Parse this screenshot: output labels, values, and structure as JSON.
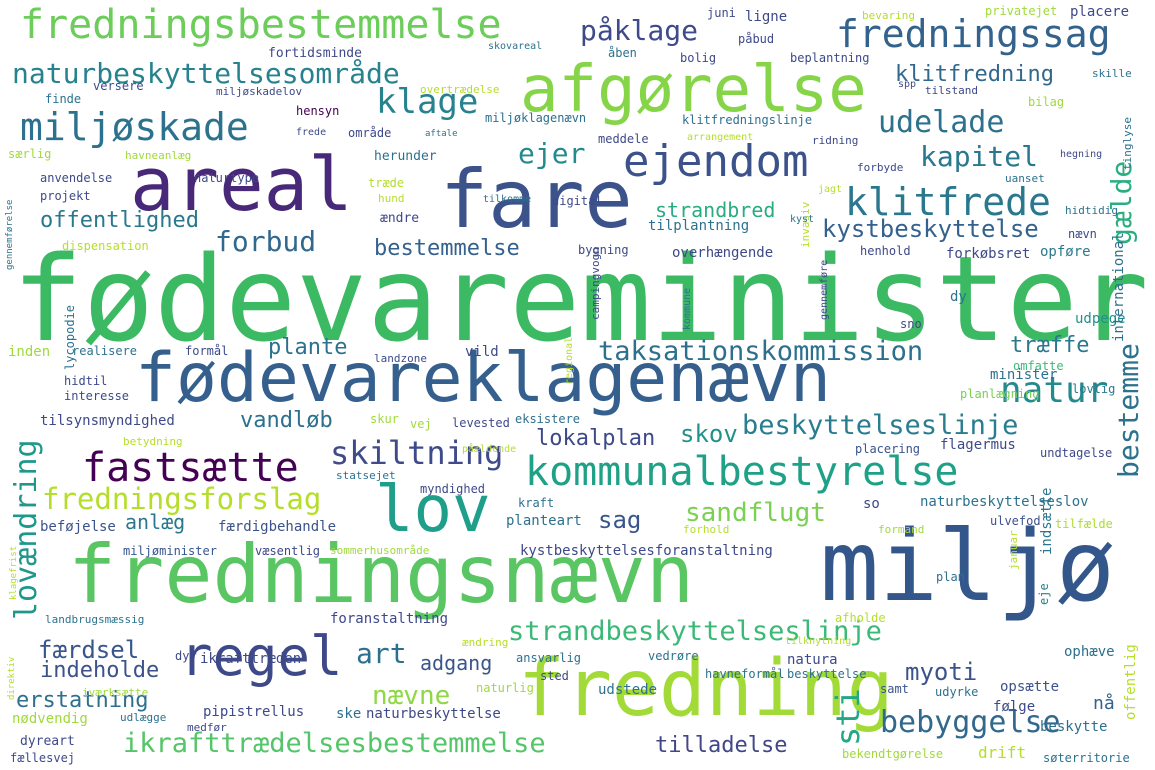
{
  "words": [
    {
      "text": "fødevareminister",
      "color": "#3cb963"
    },
    {
      "text": "fredningsnævn",
      "color": "#5ac563"
    },
    {
      "text": "miljø",
      "color": "#33568b"
    },
    {
      "text": "fare",
      "color": "#3b528b"
    },
    {
      "text": "areal",
      "color": "#482878"
    },
    {
      "text": "fødevareklagenævn",
      "color": "#355f8d"
    },
    {
      "text": "fredning",
      "color": "#a2da37"
    },
    {
      "text": "afgørelse",
      "color": "#86d549"
    },
    {
      "text": "fredningsbestemmelse",
      "color": "#6ccd5a"
    },
    {
      "text": "ejendom",
      "color": "#3b528b"
    },
    {
      "text": "regel",
      "color": "#3e4989"
    },
    {
      "text": "lov",
      "color": "#1f9e89"
    },
    {
      "text": "kommunalbestyrelse",
      "color": "#1fa187"
    },
    {
      "text": "fastsætte",
      "color": "#440154"
    },
    {
      "text": "fredningssag",
      "color": "#33638d"
    },
    {
      "text": "miljøskade",
      "color": "#2c728e"
    },
    {
      "text": "klitfrede",
      "color": "#2a788e"
    },
    {
      "text": "naturbeskyttelsesområde",
      "color": "#26828e"
    },
    {
      "text": "ikrafttrædelsesbestemmelse",
      "color": "#54c568"
    },
    {
      "text": "strandbeskyttelseslinje",
      "color": "#3aba76"
    },
    {
      "text": "fredningsforslag",
      "color": "#b5de2b"
    },
    {
      "text": "skiltning",
      "color": "#3e4a89"
    },
    {
      "text": "taksationskommission",
      "color": "#2d708e"
    },
    {
      "text": "beskyttelseslinje",
      "color": "#287d8e"
    },
    {
      "text": "bebyggelse",
      "color": "#31688e"
    },
    {
      "text": "lovændring",
      "color": "#1f988b"
    },
    {
      "text": "natur",
      "color": "#238a8d"
    },
    {
      "text": "bestemme",
      "color": "#2c728e"
    },
    {
      "text": "udelade",
      "color": "#2c728e"
    },
    {
      "text": "klage",
      "color": "#26828e"
    },
    {
      "text": "kapitel",
      "color": "#2a788e"
    },
    {
      "text": "forbud",
      "color": "#31688e"
    },
    {
      "text": "bestemmelse",
      "color": "#34618d"
    },
    {
      "text": "kystbeskyttelse",
      "color": "#34618d"
    },
    {
      "text": "påklage",
      "color": "#3e4a89"
    },
    {
      "text": "klitfredning",
      "color": "#31688e"
    },
    {
      "text": "ejer",
      "color": "#238a8d"
    },
    {
      "text": "gælde",
      "color": "#29af7f"
    },
    {
      "text": "sandflugt",
      "color": "#7ad151"
    },
    {
      "text": "sti",
      "color": "#22a884"
    },
    {
      "text": "art",
      "color": "#2d708e"
    },
    {
      "text": "sag",
      "color": "#39568c"
    },
    {
      "text": "færdsel",
      "color": "#39568c"
    },
    {
      "text": "adgang",
      "color": "#39568c"
    },
    {
      "text": "erstatning",
      "color": "#2d708e"
    },
    {
      "text": "indeholde",
      "color": "#3b528b"
    },
    {
      "text": "nævne",
      "color": "#8fd744"
    },
    {
      "text": "myoti",
      "color": "#3b528b"
    },
    {
      "text": "tilladelse",
      "color": "#404688"
    },
    {
      "text": "offentlighed",
      "color": "#2a788e"
    },
    {
      "text": "strandbred",
      "color": "#27ad81"
    },
    {
      "text": "plante",
      "color": "#2c728e"
    },
    {
      "text": "lokalplan",
      "color": "#3e4989"
    },
    {
      "text": "vandløb",
      "color": "#2d708e"
    },
    {
      "text": "skov",
      "color": "#21918c"
    },
    {
      "text": "træffe",
      "color": "#2a788e"
    },
    {
      "text": "anlæg",
      "color": "#2a788e"
    },
    {
      "text": "opsætte",
      "color": "#3b528b"
    },
    {
      "text": "følge",
      "color": "#3e4989"
    },
    {
      "text": "beskytte",
      "color": "#2d708e"
    },
    {
      "text": "drift",
      "color": "#b5de2b"
    },
    {
      "text": "ophæve",
      "color": "#2d708e"
    },
    {
      "text": "offentlig",
      "color": "#b5de2b"
    },
    {
      "text": "nå",
      "color": "#33638d"
    },
    {
      "text": "indsætte",
      "color": "#2a788e"
    },
    {
      "text": "so",
      "color": "#3e4989"
    },
    {
      "text": "udpege",
      "color": "#21918c"
    },
    {
      "text": "opføre",
      "color": "#2a788e"
    },
    {
      "text": "lovlig",
      "color": "#2a788e"
    },
    {
      "text": "omfatte",
      "color": "#3aba76"
    },
    {
      "text": "minister",
      "color": "#2c728e"
    },
    {
      "text": "planlægning",
      "color": "#75d054"
    },
    {
      "text": "flagermus",
      "color": "#3e4989"
    },
    {
      "text": "placering",
      "color": "#3b528b"
    },
    {
      "text": "undtagelse",
      "color": "#3e4989"
    },
    {
      "text": "naturbeskyttelseslov",
      "color": "#2c728e"
    },
    {
      "text": "tilfælde",
      "color": "#addc30"
    },
    {
      "text": "ulvefod",
      "color": "#3b528b"
    },
    {
      "text": "formand",
      "color": "#9fda3a"
    },
    {
      "text": "januar",
      "color": "#b5de2b"
    },
    {
      "text": "plan",
      "color": "#2d708e"
    },
    {
      "text": "eje",
      "color": "#26828e"
    },
    {
      "text": "afholde",
      "color": "#b5de2b"
    },
    {
      "text": "samt",
      "color": "#39568c"
    },
    {
      "text": "udyrke",
      "color": "#2c728e"
    },
    {
      "text": "bekendtgørelse",
      "color": "#9fda3a"
    },
    {
      "text": "søterritorie",
      "color": "#2c728e"
    },
    {
      "text": "udstede",
      "color": "#2c728e"
    },
    {
      "text": "natura",
      "color": "#3e4989"
    },
    {
      "text": "beskyttelse",
      "color": "#2c728e"
    },
    {
      "text": "havneformål",
      "color": "#2c728e"
    },
    {
      "text": "vedrøre",
      "color": "#2c728e"
    },
    {
      "text": "tilknytning",
      "color": "#b5de2b"
    },
    {
      "text": "ændring",
      "color": "#b5de2b"
    },
    {
      "text": "foranstaltning",
      "color": "#3e4989"
    },
    {
      "text": "ansvarlig",
      "color": "#2c728e"
    },
    {
      "text": "sted",
      "color": "#3e4989"
    },
    {
      "text": "naturlig",
      "color": "#9fda3a"
    },
    {
      "text": "ske",
      "color": "#2d708e"
    },
    {
      "text": "naturbeskyttelse",
      "color": "#3e4989"
    },
    {
      "text": "kystbeskyttelsesforanstaltning",
      "color": "#3e4989"
    },
    {
      "text": "forhold",
      "color": "#b5de2b"
    },
    {
      "text": "sommerhusområde",
      "color": "#9fda3a"
    },
    {
      "text": "væsentlig",
      "color": "#3e4989"
    },
    {
      "text": "miljøminister",
      "color": "#39568c"
    },
    {
      "text": "beføjelse",
      "color": "#3b528b"
    },
    {
      "text": "færdigbehandle",
      "color": "#3b528b"
    },
    {
      "text": "planteart",
      "color": "#2d708e"
    },
    {
      "text": "kraft",
      "color": "#2c728e"
    },
    {
      "text": "myndighed",
      "color": "#3e4989"
    },
    {
      "text": "statsejet",
      "color": "#2d708e"
    },
    {
      "text": "påældende",
      "color": "#b5de2b"
    },
    {
      "text": "levested",
      "color": "#3e4989"
    },
    {
      "text": "eksistere",
      "color": "#2d708e"
    },
    {
      "text": "skur",
      "color": "#9fda3a"
    },
    {
      "text": "vej",
      "color": "#9fda3a"
    },
    {
      "text": "tilsynsmyndighed",
      "color": "#3e4989"
    },
    {
      "text": "betydning",
      "color": "#b5de2b"
    },
    {
      "text": "interesse",
      "color": "#3e4989"
    },
    {
      "text": "hidtil",
      "color": "#3e4989"
    },
    {
      "text": "lycopodie",
      "color": "#2c728e"
    },
    {
      "text": "inden",
      "color": "#9fda3a"
    },
    {
      "text": "realisere",
      "color": "#2c728e"
    },
    {
      "text": "formål",
      "color": "#3e4989"
    },
    {
      "text": "landzone",
      "color": "#3e4989"
    },
    {
      "text": "vild",
      "color": "#3e4989"
    },
    {
      "text": "campingvogn",
      "color": "#3e4989"
    },
    {
      "text": "regional",
      "color": "#b5de2b"
    },
    {
      "text": "kommune",
      "color": "#2c728e"
    },
    {
      "text": "gennemføre",
      "color": "#3e4989"
    },
    {
      "text": "sno",
      "color": "#3e4989"
    },
    {
      "text": "dy",
      "color": "#2c728e"
    },
    {
      "text": "international",
      "color": "#2c728e"
    },
    {
      "text": "nævn",
      "color": "#3e4989"
    },
    {
      "text": "henhold",
      "color": "#3e4989"
    },
    {
      "text": "forkøbsret",
      "color": "#3e4989"
    },
    {
      "text": "overhængende",
      "color": "#3e4989"
    },
    {
      "text": "bygning",
      "color": "#3e4989"
    },
    {
      "text": "dispensation",
      "color": "#b5de2b"
    },
    {
      "text": "tilplantning",
      "color": "#2c728e"
    },
    {
      "text": "invasiv",
      "color": "#b5de2b"
    },
    {
      "text": "hidtidig",
      "color": "#2c728e"
    },
    {
      "text": "kyst",
      "color": "#2c728e"
    },
    {
      "text": "gennemførelse",
      "color": "#2c728e"
    },
    {
      "text": "projekt",
      "color": "#3e4989"
    },
    {
      "text": "anvendelse",
      "color": "#3e4989"
    },
    {
      "text": "særlig",
      "color": "#9fda3a"
    },
    {
      "text": "havneanlæg",
      "color": "#9fda3a"
    },
    {
      "text": "naturtype",
      "color": "#3e4989"
    },
    {
      "text": "herunder",
      "color": "#2d708e"
    },
    {
      "text": "træde",
      "color": "#b5de2b"
    },
    {
      "text": "hund",
      "color": "#b5de2b"
    },
    {
      "text": "ændre",
      "color": "#3e4989"
    },
    {
      "text": "tilkomme",
      "color": "#2c728e"
    },
    {
      "text": "digital",
      "color": "#3e4989"
    },
    {
      "text": "jagt",
      "color": "#b5de2b"
    },
    {
      "text": "forbyde",
      "color": "#3e4989"
    },
    {
      "text": "uanset",
      "color": "#2c728e"
    },
    {
      "text": "tinglyse",
      "color": "#2c728e"
    },
    {
      "text": "hegning",
      "color": "#3e4989"
    },
    {
      "text": "ridning",
      "color": "#3e4989"
    },
    {
      "text": "bilag",
      "color": "#9fda3a"
    },
    {
      "text": "meddele",
      "color": "#3e4989"
    },
    {
      "text": "arrangement",
      "color": "#b5de2b"
    },
    {
      "text": "klitfredningslinje",
      "color": "#2d708e"
    },
    {
      "text": "miljøklagenævn",
      "color": "#2d708e"
    },
    {
      "text": "aftale",
      "color": "#2c728e"
    },
    {
      "text": "område",
      "color": "#3e4989"
    },
    {
      "text": "frede",
      "color": "#3e4989"
    },
    {
      "text": "hensyn",
      "color": "#440154"
    },
    {
      "text": "overtrædelse",
      "color": "#b5de2b"
    },
    {
      "text": "miljøskadelov",
      "color": "#3e4989"
    },
    {
      "text": "versere",
      "color": "#3e4989"
    },
    {
      "text": "finde",
      "color": "#2c728e"
    },
    {
      "text": "fortidsminde",
      "color": "#3e4989"
    },
    {
      "text": "skovareal",
      "color": "#2c728e"
    },
    {
      "text": "åben",
      "color": "#2c728e"
    },
    {
      "text": "bolig",
      "color": "#3e4989"
    },
    {
      "text": "påbud",
      "color": "#3e4989"
    },
    {
      "text": "juni",
      "color": "#3e4989"
    },
    {
      "text": "ligne",
      "color": "#3e4989"
    },
    {
      "text": "bevaring",
      "color": "#b5de2b"
    },
    {
      "text": "privatejet",
      "color": "#9fda3a"
    },
    {
      "text": "placere",
      "color": "#3e4989"
    },
    {
      "text": "beplantning",
      "color": "#3e4989"
    },
    {
      "text": "spp",
      "color": "#3e4989"
    },
    {
      "text": "tilstand",
      "color": "#3e4989"
    },
    {
      "text": "skille",
      "color": "#2c728e"
    },
    {
      "text": "ikrafttræden",
      "color": "#3e4989"
    },
    {
      "text": "dyr",
      "color": "#3e4989"
    },
    {
      "text": "landbrugsmæssig",
      "color": "#2c728e"
    },
    {
      "text": "klagefrist",
      "color": "#b5de2b"
    },
    {
      "text": "direktiv",
      "color": "#b5de2b"
    },
    {
      "text": "iværksætte",
      "color": "#9fda3a"
    },
    {
      "text": "nødvendig",
      "color": "#9fda3a"
    },
    {
      "text": "udlægge",
      "color": "#2c728e"
    },
    {
      "text": "medfør",
      "color": "#3e4989"
    },
    {
      "text": "dyreart",
      "color": "#3e4989"
    },
    {
      "text": "fællesvej",
      "color": "#3e4989"
    },
    {
      "text": "pipistrellus",
      "color": "#3e4989"
    }
  ]
}
